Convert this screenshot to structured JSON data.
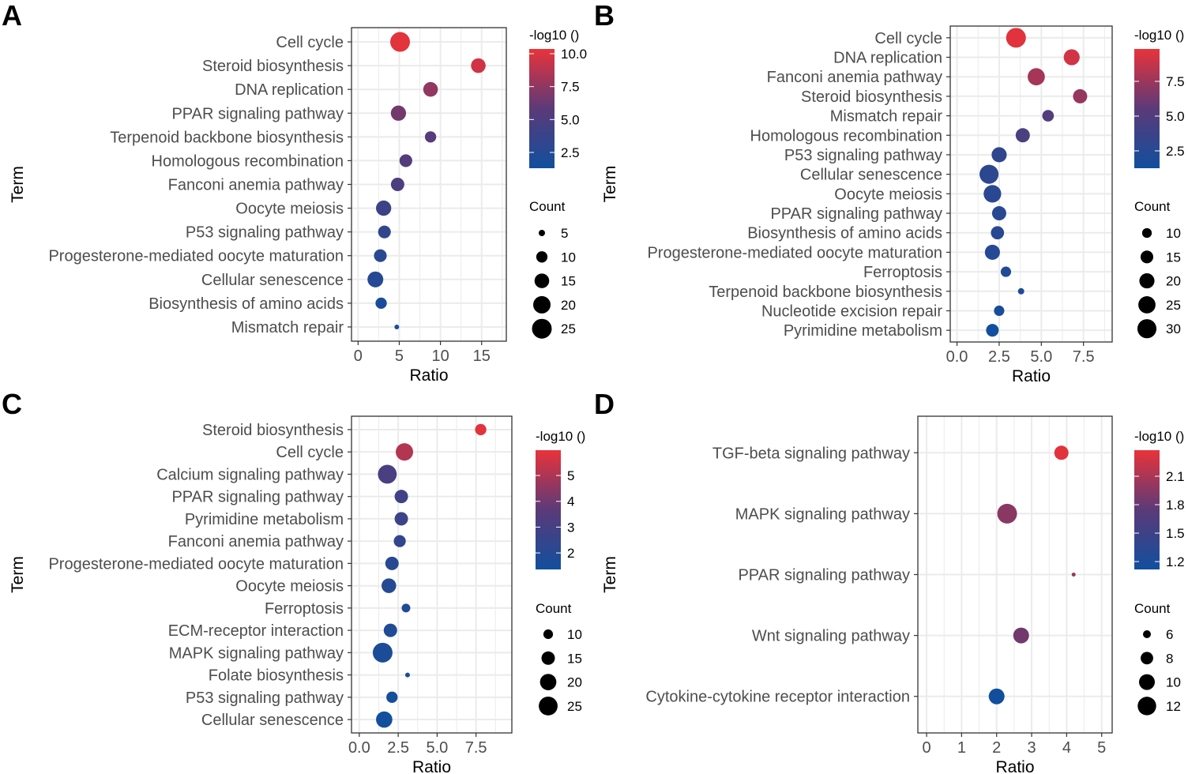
{
  "chart_data": [
    {
      "panel": "A",
      "type": "scatter",
      "xlabel": "Ratio",
      "ylabel": "Term",
      "xlim": [
        -0.8,
        18
      ],
      "x_ticks": [
        0,
        5,
        10,
        15
      ],
      "x_tick_labels": [
        "0",
        "5",
        "10",
        "15"
      ],
      "color_title": "-log10 ()",
      "color_range": [
        1.3,
        10.36
      ],
      "color_ticks": [
        2.5,
        5,
        7.5,
        10
      ],
      "color_tick_labels": [
        "2.5",
        "5.0",
        "7.5",
        "10.0"
      ],
      "size_title": "Count",
      "size_range": [
        4,
        25
      ],
      "size_breaks": [
        5,
        10,
        15,
        20,
        25
      ],
      "size_break_labels": [
        "5",
        "10",
        "15",
        "20",
        "25"
      ],
      "terms": [
        "Cell cycle",
        "Steroid biosynthesis",
        "DNA replication",
        "PPAR signaling pathway",
        "Terpenoid backbone biosynthesis",
        "Homologous recombination",
        "Fanconi anemia pathway",
        "Oocyte meiosis",
        "P53 signaling pathway",
        "Progesterone-mediated oocyte maturation",
        "Cellular senescence",
        "Biosynthesis of amino acids",
        "Mismatch repair"
      ],
      "ratio": [
        5.1,
        14.6,
        8.8,
        4.9,
        8.8,
        5.8,
        4.8,
        3.1,
        3.2,
        2.7,
        2.1,
        2.8,
        4.7
      ],
      "count": [
        25,
        15,
        15,
        16,
        10,
        12,
        13,
        16,
        12,
        12,
        17,
        10,
        4
      ],
      "neglog10": [
        10.2,
        9.6,
        7.6,
        6.6,
        5.6,
        5.3,
        5.0,
        4.0,
        3.3,
        2.8,
        2.5,
        1.9,
        1.4
      ]
    },
    {
      "panel": "B",
      "type": "scatter",
      "xlabel": "Ratio",
      "ylabel": "Term",
      "xlim": [
        -0.4,
        9.2
      ],
      "x_ticks": [
        0,
        2.5,
        5,
        7.5
      ],
      "x_tick_labels": [
        "0.0",
        "2.5",
        "5.0",
        "7.5"
      ],
      "color_title": "-log10 ()",
      "color_range": [
        1.25,
        9.83
      ],
      "color_ticks": [
        2.5,
        5,
        7.5
      ],
      "color_tick_labels": [
        "2.5",
        "5.0",
        "7.5"
      ],
      "size_title": "Count",
      "size_range": [
        6,
        32
      ],
      "size_breaks": [
        10,
        15,
        20,
        25,
        30
      ],
      "size_break_labels": [
        "10",
        "15",
        "20",
        "25",
        "30"
      ],
      "terms": [
        "Cell cycle",
        "DNA replication",
        "Fanconi anemia pathway",
        "Steroid biosynthesis",
        "Mismatch repair",
        "Homologous recombination",
        "P53 signaling pathway",
        "Cellular senescence",
        "Oocyte meiosis",
        "PPAR signaling pathway",
        "Biosynthesis of amino acids",
        "Progesterone-mediated oocyte maturation",
        "Ferroptosis",
        "Terpenoid backbone biosynthesis",
        "Nucleotide excision repair",
        "Pyrimidine metabolism"
      ],
      "ratio": [
        3.5,
        6.8,
        4.7,
        7.3,
        5.4,
        3.9,
        2.5,
        1.9,
        2.1,
        2.5,
        2.4,
        2.1,
        2.9,
        3.8,
        2.5,
        2.1
      ],
      "count": [
        32,
        22,
        25,
        18,
        13,
        18,
        20,
        30,
        26,
        18,
        16,
        20,
        11,
        6,
        11,
        15
      ],
      "neglog10": [
        9.6,
        9.1,
        7.8,
        7.3,
        5.0,
        4.6,
        3.0,
        2.8,
        2.7,
        2.6,
        2.5,
        2.4,
        2.1,
        1.9,
        1.6,
        1.3
      ]
    },
    {
      "panel": "C",
      "type": "scatter",
      "xlabel": "Ratio",
      "ylabel": "Term",
      "xlim": [
        -0.5,
        9.8
      ],
      "x_ticks": [
        0,
        2.5,
        5,
        7.5
      ],
      "x_tick_labels": [
        "0.0",
        "2.5",
        "5.0",
        "7.5"
      ],
      "color_title": "-log10 ()",
      "color_range": [
        1.36,
        5.98
      ],
      "color_ticks": [
        2,
        3,
        4,
        5
      ],
      "color_tick_labels": [
        "2",
        "3",
        "4",
        "5"
      ],
      "size_title": "Count",
      "size_range": [
        6,
        27
      ],
      "size_breaks": [
        10,
        15,
        20,
        25
      ],
      "size_break_labels": [
        "10",
        "15",
        "20",
        "25"
      ],
      "terms": [
        "Steroid biosynthesis",
        "Cell cycle",
        "Calcium signaling pathway",
        "PPAR signaling pathway",
        "Pyrimidine metabolism",
        "Fanconi anemia pathway",
        "Progesterone-mediated oocyte maturation",
        "Oocyte meiosis",
        "Ferroptosis",
        "ECM-receptor interaction",
        "MAPK signaling pathway",
        "Folate biosynthesis",
        "P53 signaling pathway",
        "Cellular senescence"
      ],
      "ratio": [
        7.8,
        2.9,
        1.8,
        2.7,
        2.7,
        2.6,
        2.1,
        1.9,
        3.0,
        2.0,
        1.5,
        3.1,
        2.1,
        1.6
      ],
      "count": [
        12,
        22,
        25,
        15,
        15,
        13,
        15,
        17,
        9,
        15,
        27,
        6,
        12,
        20
      ],
      "neglog10": [
        5.9,
        5.1,
        3.1,
        2.8,
        2.7,
        2.4,
        2.1,
        2.0,
        1.8,
        1.8,
        1.7,
        1.6,
        1.5,
        1.4
      ]
    },
    {
      "panel": "D",
      "type": "scatter",
      "xlabel": "Ratio",
      "ylabel": "Term",
      "xlim": [
        -0.25,
        5.3
      ],
      "x_ticks": [
        0,
        1,
        2,
        3,
        4,
        5
      ],
      "x_tick_labels": [
        "0",
        "1",
        "2",
        "3",
        "4",
        "5"
      ],
      "color_title": "-log10 ()",
      "color_range": [
        1.117,
        2.375
      ],
      "color_ticks": [
        1.2,
        1.5,
        1.8,
        2.1
      ],
      "color_tick_labels": [
        "1.2",
        "1.5",
        "1.8",
        "2.1"
      ],
      "size_title": "Count",
      "size_range": [
        5,
        13
      ],
      "size_breaks": [
        6,
        8,
        10,
        12
      ],
      "size_break_labels": [
        "6",
        "8",
        "10",
        "12"
      ],
      "terms": [
        "TGF-beta signaling pathway",
        "MAPK signaling pathway",
        "PPAR signaling pathway",
        "Wnt signaling pathway",
        "Cytokine-cytokine receptor interaction"
      ],
      "ratio": [
        3.85,
        2.3,
        4.2,
        2.7,
        2.0
      ],
      "count": [
        9,
        13,
        5,
        10,
        10
      ],
      "neglog10": [
        2.35,
        1.95,
        2.0,
        1.85,
        1.12
      ]
    }
  ],
  "colors": {
    "low": "#114f9e",
    "mid": "#5b3a78",
    "high": "#e8333a",
    "grid": "#ebebeb",
    "frame": "#333333"
  }
}
